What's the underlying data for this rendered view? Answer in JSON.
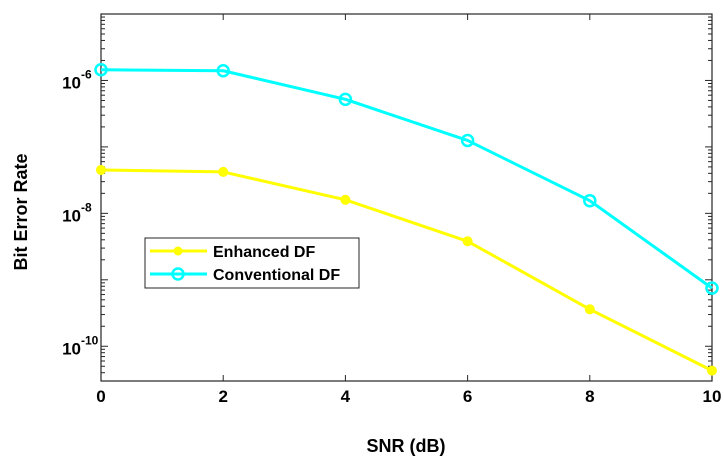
{
  "chart_data": {
    "type": "line",
    "title": "",
    "xlabel": "SNR (dB)",
    "ylabel": "Bit Error Rate",
    "x": [
      0,
      2,
      4,
      6,
      8,
      10
    ],
    "xlim": [
      0,
      10
    ],
    "xticks": [
      "0",
      "2",
      "4",
      "6",
      "8",
      "10"
    ],
    "yscale": "log",
    "ylim": [
      3e-11,
      1e-05
    ],
    "yticks": [
      {
        "value": 1e-06,
        "base": "10",
        "exp": "-6"
      },
      {
        "value": 1e-08,
        "base": "10",
        "exp": "-8"
      },
      {
        "value": 1e-10,
        "base": "10",
        "exp": "-10"
      }
    ],
    "grid": false,
    "legend_position": "left",
    "series": [
      {
        "name": "Enhanced DF",
        "color": "#ffff00",
        "marker": "filled-circle",
        "values": [
          4.5e-08,
          4.2e-08,
          1.6e-08,
          3.8e-09,
          3.6e-10,
          4.3e-11
        ]
      },
      {
        "name": "Conventional DF",
        "color": "#00ffff",
        "marker": "open-circle",
        "values": [
          1.45e-06,
          1.4e-06,
          5.2e-07,
          1.25e-07,
          1.55e-08,
          7.5e-10
        ]
      }
    ]
  }
}
